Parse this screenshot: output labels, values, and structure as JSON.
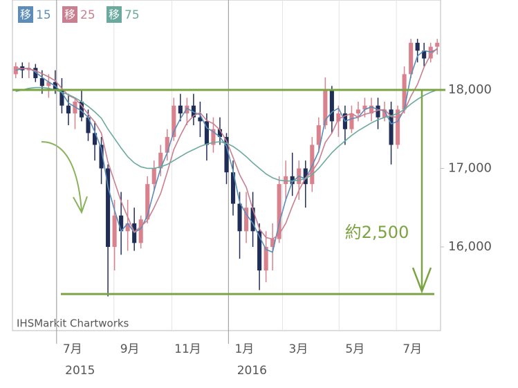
{
  "chart_data": {
    "type": "candlestick",
    "watermark": "IHSMarkit Chartworks",
    "legend_badge": "移",
    "up_color": "#d9828e",
    "down_color": "#1f2d57",
    "grid": true,
    "xlim": [
      0,
      65
    ],
    "xticks": [
      {
        "value": 6.7,
        "label": "7月"
      },
      {
        "value": 15.4,
        "label": "9月"
      },
      {
        "value": 24.2,
        "label": "11月"
      },
      {
        "value": 32.8,
        "label": "1月"
      },
      {
        "value": 41.0,
        "label": "3月"
      },
      {
        "value": 49.6,
        "label": "5月"
      },
      {
        "value": 58.3,
        "label": "7月"
      }
    ],
    "x_year_labels": [
      {
        "value": 6.7,
        "label": "2015"
      },
      {
        "value": 32.8,
        "label": "2016"
      }
    ],
    "ylim": [
      14934,
      19145
    ],
    "yticks": [
      {
        "value": 16000,
        "label": "16,000"
      },
      {
        "value": 17000,
        "label": "17,000"
      },
      {
        "value": 18000,
        "label": "18,000"
      }
    ],
    "ohlc": [
      [
        18200,
        18350,
        18150,
        18300
      ],
      [
        18300,
        18350,
        18150,
        18250
      ],
      [
        18250,
        18350,
        18150,
        18280
      ],
      [
        18280,
        18330,
        18100,
        18150
      ],
      [
        18150,
        18250,
        17950,
        18050
      ],
      [
        18050,
        18200,
        17900,
        18100
      ],
      [
        18100,
        18250,
        17950,
        18000
      ],
      [
        18000,
        18150,
        17700,
        17800
      ],
      [
        17800,
        17950,
        17550,
        17700
      ],
      [
        17700,
        17900,
        17500,
        17850
      ],
      [
        17850,
        18000,
        17600,
        17650
      ],
      [
        17650,
        17750,
        17350,
        17450
      ],
      [
        17450,
        17600,
        17100,
        17300
      ],
      [
        17300,
        17400,
        16800,
        17000
      ],
      [
        17000,
        17050,
        15370,
        16000
      ],
      [
        16000,
        16600,
        15700,
        16400
      ],
      [
        16400,
        16700,
        15900,
        16200
      ],
      [
        16200,
        16600,
        15950,
        16300
      ],
      [
        16300,
        16500,
        15950,
        16050
      ],
      [
        16050,
        16400,
        15980,
        16350
      ],
      [
        16350,
        16900,
        16300,
        16800
      ],
      [
        16800,
        17100,
        16700,
        17000
      ],
      [
        17000,
        17300,
        16900,
        17200
      ],
      [
        17200,
        17500,
        17100,
        17400
      ],
      [
        17400,
        17900,
        17350,
        17800
      ],
      [
        17800,
        17950,
        17600,
        17700
      ],
      [
        17700,
        17900,
        17550,
        17800
      ],
      [
        17800,
        17950,
        17550,
        17650
      ],
      [
        17650,
        17850,
        17400,
        17600
      ],
      [
        17600,
        17700,
        17100,
        17300
      ],
      [
        17300,
        17650,
        17200,
        17500
      ],
      [
        17500,
        17650,
        17300,
        17400
      ],
      [
        17400,
        17450,
        16800,
        16950
      ],
      [
        16950,
        17100,
        16400,
        16550
      ],
      [
        16550,
        16700,
        15850,
        16200
      ],
      [
        16200,
        16700,
        16050,
        16500
      ],
      [
        16500,
        16700,
        16000,
        16200
      ],
      [
        16200,
        16300,
        15450,
        15700
      ],
      [
        15700,
        16200,
        15550,
        16000
      ],
      [
        16000,
        16300,
        15700,
        16100
      ],
      [
        16100,
        16900,
        16050,
        16800
      ],
      [
        16800,
        17100,
        16600,
        16900
      ],
      [
        16900,
        17200,
        16650,
        16800
      ],
      [
        16800,
        17100,
        16600,
        17000
      ],
      [
        17000,
        17100,
        16500,
        16800
      ],
      [
        16800,
        17400,
        16700,
        17300
      ],
      [
        17300,
        17650,
        17200,
        17550
      ],
      [
        17550,
        18160,
        17500,
        18000
      ],
      [
        18000,
        18050,
        17450,
        17600
      ],
      [
        17600,
        17800,
        17400,
        17700
      ],
      [
        17700,
        17800,
        17300,
        17500
      ],
      [
        17500,
        17800,
        17450,
        17700
      ],
      [
        17700,
        17850,
        17600,
        17750
      ],
      [
        17750,
        17900,
        17650,
        17800
      ],
      [
        17700,
        17900,
        17600,
        17800
      ],
      [
        17800,
        17900,
        17500,
        17650
      ],
      [
        17650,
        17850,
        17600,
        17750
      ],
      [
        17750,
        17850,
        17050,
        17300
      ],
      [
        17300,
        17800,
        17250,
        17750
      ],
      [
        17750,
        18300,
        17700,
        18200
      ],
      [
        18200,
        18650,
        18150,
        18600
      ],
      [
        18600,
        18650,
        18350,
        18500
      ],
      [
        18500,
        18600,
        18300,
        18400
      ],
      [
        18400,
        18600,
        18350,
        18550
      ],
      [
        18550,
        18650,
        18450,
        18600
      ]
    ],
    "series": [
      {
        "name": "15",
        "color": "#5b8db8",
        "values": [
          18250,
          18270,
          18277,
          18227,
          18160,
          18100,
          18050,
          17967,
          17833,
          17783,
          17733,
          17650,
          17467,
          17250,
          16767,
          16467,
          16200,
          16300,
          16183,
          16233,
          16400,
          16717,
          17000,
          17200,
          17467,
          17633,
          17767,
          17717,
          17683,
          17517,
          17467,
          17400,
          17283,
          16967,
          16567,
          16417,
          16300,
          16133,
          15967,
          15933,
          16300,
          16600,
          16833,
          16900,
          16867,
          17033,
          17217,
          17617,
          17717,
          17767,
          17600,
          17633,
          17650,
          17750,
          17783,
          17750,
          17733,
          17567,
          17600,
          17750,
          18183,
          18433,
          18500,
          18483,
          18517
        ]
      },
      {
        "name": "25",
        "color": "#c97f8f",
        "values": [
          18280,
          18270,
          18270,
          18245,
          18206,
          18166,
          18116,
          18020,
          17930,
          17890,
          17800,
          17690,
          17590,
          17450,
          17080,
          16830,
          16580,
          16380,
          16190,
          16260,
          16340,
          16500,
          16680,
          16950,
          17240,
          17420,
          17580,
          17670,
          17710,
          17610,
          17570,
          17490,
          17350,
          17140,
          16920,
          16760,
          16480,
          16230,
          16120,
          16100,
          16160,
          16300,
          16520,
          16720,
          16880,
          16960,
          17090,
          17330,
          17450,
          17630,
          17670,
          17700,
          17650,
          17690,
          17710,
          17740,
          17750,
          17660,
          17650,
          17730,
          17920,
          18070,
          18290,
          18450,
          18530
        ]
      },
      {
        "name": "75",
        "color": "#6aa99e",
        "values": [
          17980,
          18000,
          18020,
          18030,
          18030,
          18020,
          18000,
          17970,
          17940,
          17900,
          17850,
          17790,
          17720,
          17640,
          17500,
          17380,
          17260,
          17150,
          17070,
          17020,
          17000,
          17000,
          17020,
          17050,
          17100,
          17150,
          17200,
          17240,
          17280,
          17310,
          17330,
          17340,
          17320,
          17280,
          17220,
          17150,
          17070,
          17000,
          16930,
          16880,
          16850,
          16840,
          16840,
          16850,
          16870,
          16920,
          17000,
          17100,
          17200,
          17280,
          17350,
          17420,
          17480,
          17530,
          17580,
          17620,
          17650,
          17670,
          17700,
          17750,
          17820,
          17880,
          17930,
          17970,
          18000
        ]
      }
    ],
    "reference_lines": [
      {
        "value": 18000,
        "color": "#7aa443"
      },
      {
        "value": 15400,
        "color": "#7aa443"
      }
    ],
    "annotation": "約2,500"
  }
}
